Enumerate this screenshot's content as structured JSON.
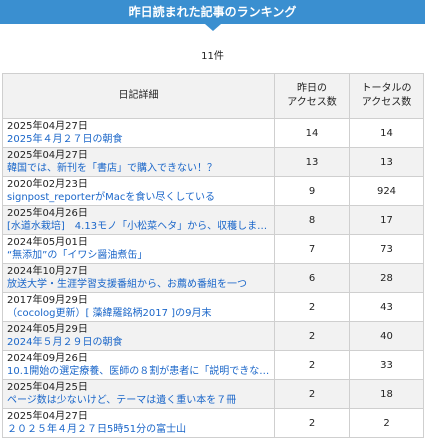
{
  "header": {
    "title": "昨日読まれた記事のランキング"
  },
  "count_label": "11件",
  "table": {
    "col_detail": "日記詳細",
    "col_yesterday_l1": "昨日の",
    "col_yesterday_l2": "アクセス数",
    "col_total_l1": "トータルの",
    "col_total_l2": "アクセス数",
    "rows": [
      {
        "date": "2025年04月27日",
        "title": "2025年４月２７日の朝食",
        "yesterday": "14",
        "total": "14"
      },
      {
        "date": "2025年04月27日",
        "title": "韓国では、新刊を「書店」で購入できない！？",
        "yesterday": "13",
        "total": "13"
      },
      {
        "date": "2020年02月23日",
        "title": "signpost_reporterがMacを食い尽くしている",
        "yesterday": "9",
        "total": "924"
      },
      {
        "date": "2025年04月26日",
        "title": "[水道水栽培]　4.13モノ「小松菜ヘタ」から、収穫しま…",
        "yesterday": "8",
        "total": "17"
      },
      {
        "date": "2024年05月01日",
        "title": "“無添加”の「イワシ醤油煮缶」",
        "yesterday": "7",
        "total": "73"
      },
      {
        "date": "2024年10月27日",
        "title": "放送大学・生涯学習支援番組から、お薦め番組を一つ",
        "yesterday": "6",
        "total": "28"
      },
      {
        "date": "2017年09月29日",
        "title": "（cocolog更新）[ 藻緯羅銘柄2017 ]の9月末",
        "yesterday": "2",
        "total": "43"
      },
      {
        "date": "2024年05月29日",
        "title": "2024年５月２９日の朝食",
        "yesterday": "2",
        "total": "40"
      },
      {
        "date": "2024年09月26日",
        "title": "10.1開始の選定療養、医師の８割が患者に「説明できな…",
        "yesterday": "2",
        "total": "33"
      },
      {
        "date": "2025年04月25日",
        "title": "ページ数は少ないけど、テーマは遺く重い本を７冊",
        "yesterday": "2",
        "total": "18"
      },
      {
        "date": "2025年04月27日",
        "title": "２０２５年４月２７日5時51分の富士山",
        "yesterday": "2",
        "total": "2"
      }
    ]
  }
}
